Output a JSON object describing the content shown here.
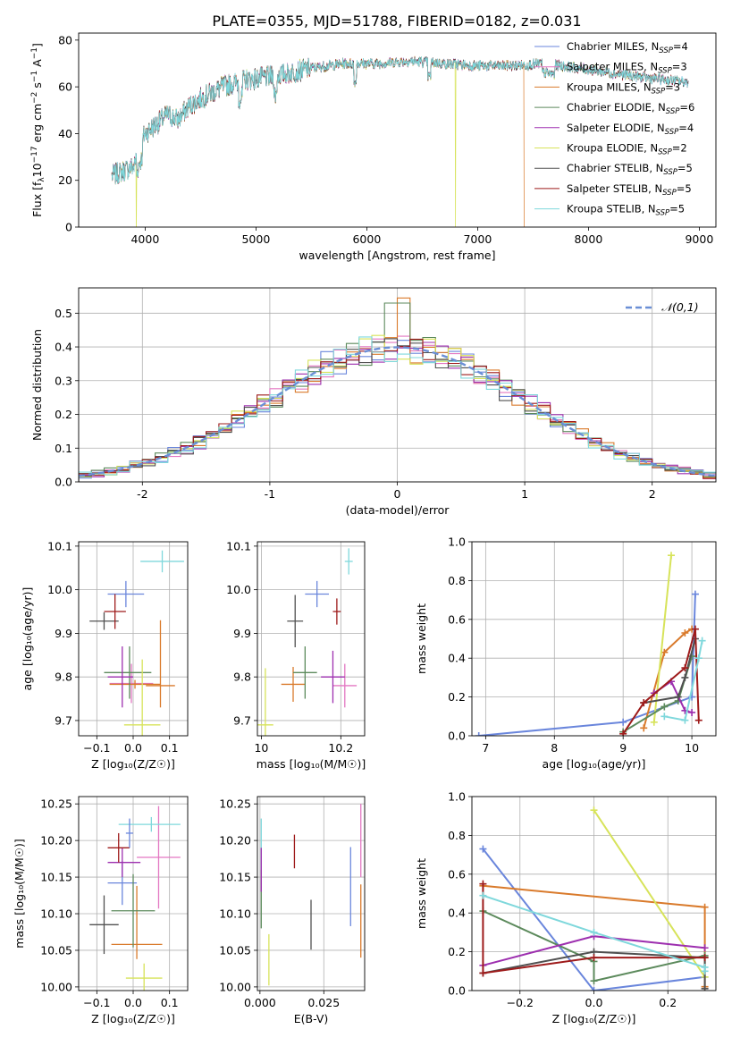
{
  "figure_title": "PLATE=0355, MJD=51788, FIBERID=0182, z=0.031",
  "chart_data": [
    {
      "id": "spectrum",
      "type": "line",
      "xlabel": "wavelength [Angstrom, rest frame]",
      "ylabel_parts": [
        "Flux [f",
        "λ",
        "10",
        "−17",
        " erg cm",
        "−2",
        " s",
        "−1",
        " A",
        "−1",
        "]"
      ],
      "xlim": [
        3400,
        9150
      ],
      "ylim": [
        0,
        83
      ],
      "xticks": [
        4000,
        5000,
        6000,
        7000,
        8000,
        9000
      ],
      "yticks": [
        0,
        20,
        40,
        60,
        80
      ],
      "continuum_approx": {
        "x": [
          3700,
          3800,
          3900,
          3950,
          4000,
          4100,
          4200,
          4300,
          4400,
          4500,
          4700,
          4900,
          5100,
          5300,
          5500,
          5800,
          6100,
          6400,
          6700,
          7000,
          7300,
          7600,
          7900,
          8200,
          8500,
          8900
        ],
        "y": [
          22,
          24,
          26,
          36,
          40,
          44,
          48,
          46,
          52,
          55,
          60,
          63,
          64,
          66,
          68,
          70,
          70,
          71,
          70,
          69,
          69,
          70,
          68,
          66,
          64,
          62
        ]
      },
      "dropouts": [
        {
          "x": 3920,
          "series": "Kroupa ELODIE"
        },
        {
          "x": 6800,
          "series": "Kroupa ELODIE"
        },
        {
          "x": 7420,
          "series": "Kroupa MILES"
        }
      ],
      "legend_position": "top-right",
      "legend": [
        {
          "name": "Chabrier MILES",
          "nssp": "4",
          "color": "#6a86dc"
        },
        {
          "name": "Salpeter MILES",
          "nssp": "3",
          "color": "#e377c2"
        },
        {
          "name": "Kroupa MILES",
          "nssp": "3",
          "color": "#d97a2b"
        },
        {
          "name": "Chabrier ELODIE",
          "nssp": "6",
          "color": "#5c8a5c"
        },
        {
          "name": "Salpeter ELODIE",
          "nssp": "4",
          "color": "#9d2faf"
        },
        {
          "name": "Kroupa ELODIE",
          "nssp": "2",
          "color": "#d7e35a"
        },
        {
          "name": "Chabrier STELIB",
          "nssp": "5",
          "color": "#505050"
        },
        {
          "name": "Salpeter STELIB",
          "nssp": "5",
          "color": "#9e1b1b"
        },
        {
          "name": "Kroupa STELIB",
          "nssp": "5",
          "color": "#7fd8dc"
        }
      ],
      "legend_prefix": "N",
      "legend_sub": "SSP"
    },
    {
      "id": "residuals",
      "type": "histogram",
      "xlabel": "(data-model)/error",
      "ylabel": "Normed distribution",
      "xlim": [
        -2.5,
        2.5
      ],
      "ylim": [
        0,
        0.575
      ],
      "xticks": [
        -2,
        -1,
        0,
        1,
        2
      ],
      "yticks": [
        0.0,
        0.1,
        0.2,
        0.3,
        0.4,
        0.5
      ],
      "bin_width": 0.1,
      "reference_curve": {
        "label": "𝒩(0,1)",
        "mean": 0,
        "sigma": 1,
        "style": "dashed",
        "color": "#6a8fd6"
      },
      "legend_position": "top-right",
      "grid": true
    },
    {
      "id": "age_vs_Z",
      "type": "errorbar",
      "xlabel": "Z [log₁₀(Z/Z☉)]",
      "ylabel": "age  [log₁₀(age/yr)]",
      "xlim": [
        -0.15,
        0.15
      ],
      "ylim": [
        9.665,
        10.11
      ],
      "xticks": [
        -0.1,
        0.0,
        0.1
      ],
      "xtick_labels": [
        "−0.1",
        "0.0",
        "0.1"
      ],
      "yticks": [
        9.7,
        9.8,
        9.9,
        10.0,
        10.1
      ],
      "points": [
        {
          "x": -0.02,
          "y": 9.99,
          "xerr": [
            0.05,
            0.05
          ],
          "yerr": [
            0.03,
            0.03
          ],
          "color": "#6a86dc"
        },
        {
          "x": -0.005,
          "y": 9.785,
          "xerr": [
            0.06,
            0.06
          ],
          "yerr": [
            0.045,
            0.045
          ],
          "color": "#e377c2"
        },
        {
          "x": 0.005,
          "y": 9.783,
          "xerr": [
            0.07,
            0.07
          ],
          "yerr": [
            0.01,
            0.01
          ],
          "color": "#d97a2b"
        },
        {
          "x": -0.01,
          "y": 9.81,
          "xerr": [
            0.07,
            0.06
          ],
          "yerr": [
            0.06,
            0.06
          ],
          "color": "#5c8a5c"
        },
        {
          "x": -0.03,
          "y": 9.8,
          "xerr": [
            0.04,
            0.03
          ],
          "yerr": [
            0.07,
            0.07
          ],
          "color": "#9d2faf"
        },
        {
          "x": 0.025,
          "y": 9.69,
          "xerr": [
            0.05,
            0.05
          ],
          "yerr": [
            0.15,
            0.15
          ],
          "color": "#d7e35a"
        },
        {
          "x": -0.08,
          "y": 9.928,
          "xerr": [
            0.04,
            0.04
          ],
          "yerr": [
            0.02,
            0.02
          ],
          "color": "#505050"
        },
        {
          "x": -0.05,
          "y": 9.95,
          "xerr": [
            0.03,
            0.03
          ],
          "yerr": [
            0.04,
            0.04
          ],
          "color": "#9e1b1b"
        },
        {
          "x": 0.08,
          "y": 10.065,
          "xerr": [
            0.06,
            0.06
          ],
          "yerr": [
            0.025,
            0.025
          ],
          "color": "#7fd8dc"
        },
        {
          "x": 0.075,
          "y": 9.78,
          "xerr": [
            0.04,
            0.04
          ],
          "yerr": [
            0.05,
            0.15
          ],
          "color": "#d97a2b"
        }
      ],
      "grid": true
    },
    {
      "id": "age_vs_mass",
      "type": "errorbar",
      "xlabel": "mass [log₁₀(M/M☉)]",
      "ylabel": "",
      "xlim": [
        9.99,
        10.26
      ],
      "ylim": [
        9.665,
        10.11
      ],
      "xticks": [
        10.0,
        10.2
      ],
      "yticks": [
        9.7,
        9.8,
        9.9,
        10.0,
        10.1
      ],
      "points": [
        {
          "x": 10.14,
          "y": 9.99,
          "xerr": [
            0.03,
            0.03
          ],
          "yerr": [
            0.03,
            0.03
          ],
          "color": "#6a86dc"
        },
        {
          "x": 10.21,
          "y": 9.78,
          "xerr": [
            0.03,
            0.03
          ],
          "yerr": [
            0.05,
            0.05
          ],
          "color": "#e377c2"
        },
        {
          "x": 10.08,
          "y": 9.783,
          "xerr": [
            0.03,
            0.03
          ],
          "yerr": [
            0.04,
            0.04
          ],
          "color": "#d97a2b"
        },
        {
          "x": 10.11,
          "y": 9.81,
          "xerr": [
            0.03,
            0.03
          ],
          "yerr": [
            0.06,
            0.06
          ],
          "color": "#5c8a5c"
        },
        {
          "x": 10.18,
          "y": 9.8,
          "xerr": [
            0.03,
            0.03
          ],
          "yerr": [
            0.06,
            0.06
          ],
          "color": "#9d2faf"
        },
        {
          "x": 10.01,
          "y": 9.69,
          "xerr": [
            0.02,
            0.02
          ],
          "yerr": [
            0.13,
            0.13
          ],
          "color": "#d7e35a"
        },
        {
          "x": 10.085,
          "y": 9.928,
          "xerr": [
            0.02,
            0.02
          ],
          "yerr": [
            0.06,
            0.06
          ],
          "color": "#505050"
        },
        {
          "x": 10.19,
          "y": 9.95,
          "xerr": [
            0.01,
            0.01
          ],
          "yerr": [
            0.03,
            0.03
          ],
          "color": "#9e1b1b"
        },
        {
          "x": 10.22,
          "y": 10.065,
          "xerr": [
            0.01,
            0.01
          ],
          "yerr": [
            0.03,
            0.03
          ],
          "color": "#7fd8dc"
        }
      ],
      "grid": true
    },
    {
      "id": "massweight_vs_age",
      "type": "line",
      "xlabel": "age  [log₁₀(age/yr)]",
      "ylabel": "mass weight",
      "xlim": [
        6.8,
        10.35
      ],
      "ylim": [
        0,
        1
      ],
      "xticks": [
        7,
        8,
        9,
        10
      ],
      "yticks": [
        0.0,
        0.2,
        0.4,
        0.6,
        0.8,
        1.0
      ],
      "series": [
        {
          "color": "#6a86dc",
          "x": [
            6.9,
            9.0,
            10.0,
            10.05
          ],
          "y": [
            0.0,
            0.07,
            0.2,
            0.73
          ]
        },
        {
          "color": "#d97a2b",
          "x": [
            9.3,
            9.6,
            9.9,
            10.0
          ],
          "y": [
            0.04,
            0.43,
            0.53,
            0.55
          ]
        },
        {
          "color": "#d7e35a",
          "x": [
            9.45,
            9.7
          ],
          "y": [
            0.07,
            0.93
          ]
        },
        {
          "color": "#5c8a5c",
          "x": [
            9.0,
            9.6,
            9.8,
            10.0
          ],
          "y": [
            0.02,
            0.15,
            0.18,
            0.41
          ]
        },
        {
          "color": "#9d2faf",
          "x": [
            9.45,
            9.7,
            9.9,
            10.0
          ],
          "y": [
            0.22,
            0.28,
            0.13,
            0.12
          ]
        },
        {
          "color": "#505050",
          "x": [
            9.3,
            9.8,
            9.9,
            10.05
          ],
          "y": [
            0.17,
            0.2,
            0.3,
            0.5
          ]
        },
        {
          "color": "#9e1b1b",
          "x": [
            9.0,
            9.3,
            9.9,
            10.05,
            10.1
          ],
          "y": [
            0.01,
            0.17,
            0.35,
            0.55,
            0.08
          ]
        },
        {
          "color": "#7fd8dc",
          "x": [
            9.6,
            9.9,
            10.1,
            10.15
          ],
          "y": [
            0.1,
            0.08,
            0.4,
            0.49
          ]
        }
      ],
      "grid": true
    },
    {
      "id": "mass_vs_Z",
      "type": "errorbar",
      "xlabel": "Z [log₁₀(Z/Z☉)]",
      "ylabel": "mass [log₁₀(M/M☉)]",
      "xlim": [
        -0.15,
        0.15
      ],
      "ylim": [
        9.995,
        10.26
      ],
      "xticks": [
        -0.1,
        0.0,
        0.1
      ],
      "xtick_labels": [
        "−0.1",
        "0.0",
        "0.1"
      ],
      "yticks": [
        10.0,
        10.05,
        10.1,
        10.15,
        10.2,
        10.25
      ],
      "points": [
        {
          "x": -0.03,
          "y": 10.142,
          "xerr": [
            0.04,
            0.04
          ],
          "yerr": [
            0.03,
            0.03
          ],
          "color": "#6a86dc"
        },
        {
          "x": 0.07,
          "y": 10.177,
          "xerr": [
            0.06,
            0.06
          ],
          "yerr": [
            0.07,
            0.07
          ],
          "color": "#e377c2"
        },
        {
          "x": 0.01,
          "y": 10.058,
          "xerr": [
            0.07,
            0.07
          ],
          "yerr": [
            0.02,
            0.08
          ],
          "color": "#d97a2b"
        },
        {
          "x": 0.0,
          "y": 10.104,
          "xerr": [
            0.06,
            0.06
          ],
          "yerr": [
            0.05,
            0.05
          ],
          "color": "#5c8a5c"
        },
        {
          "x": -0.03,
          "y": 10.17,
          "xerr": [
            0.04,
            0.05
          ],
          "yerr": [
            0.02,
            0.02
          ],
          "color": "#9d2faf"
        },
        {
          "x": 0.03,
          "y": 10.012,
          "xerr": [
            0.05,
            0.05
          ],
          "yerr": [
            0.02,
            0.02
          ],
          "color": "#d7e35a"
        },
        {
          "x": -0.08,
          "y": 10.085,
          "xerr": [
            0.04,
            0.04
          ],
          "yerr": [
            0.04,
            0.04
          ],
          "color": "#505050"
        },
        {
          "x": -0.04,
          "y": 10.19,
          "xerr": [
            0.03,
            0.03
          ],
          "yerr": [
            0.02,
            0.02
          ],
          "color": "#9e1b1b"
        },
        {
          "x": 0.05,
          "y": 10.222,
          "xerr": [
            0.09,
            0.08
          ],
          "yerr": [
            0.01,
            0.01
          ],
          "color": "#7fd8dc"
        },
        {
          "x": -0.01,
          "y": 10.21,
          "xerr": [
            0.01,
            0.01
          ],
          "yerr": [
            0.02,
            0.02
          ],
          "color": "#6a86dc"
        }
      ],
      "grid": true
    },
    {
      "id": "mass_vs_ebv",
      "type": "errorbar",
      "xlabel": "E(B-V)",
      "ylabel": "",
      "xlim": [
        -0.001,
        0.041
      ],
      "ylim": [
        9.995,
        10.26
      ],
      "xticks": [
        0.0,
        0.025
      ],
      "xtick_labels": [
        "0.000",
        "0.025"
      ],
      "yticks": [
        10.0,
        10.05,
        10.1,
        10.15,
        10.2,
        10.25
      ],
      "points": [
        {
          "x": 0.0355,
          "y": 10.137,
          "xerr": [
            0,
            0
          ],
          "yerr": [
            0.054,
            0.054
          ],
          "color": "#6a86dc"
        },
        {
          "x": 0.0395,
          "y": 10.2,
          "xerr": [
            0,
            0
          ],
          "yerr": [
            0.05,
            0.05
          ],
          "color": "#e377c2"
        },
        {
          "x": 0.0395,
          "y": 10.09,
          "xerr": [
            0,
            0
          ],
          "yerr": [
            0.05,
            0.05
          ],
          "color": "#d97a2b"
        },
        {
          "x": 0.0005,
          "y": 10.195,
          "xerr": [
            0,
            0
          ],
          "yerr": [
            0.035,
            0.035
          ],
          "color": "#7fd8dc"
        },
        {
          "x": 0.0005,
          "y": 10.12,
          "xerr": [
            0,
            0
          ],
          "yerr": [
            0.04,
            0.04
          ],
          "color": "#5c8a5c"
        },
        {
          "x": 0.0005,
          "y": 10.16,
          "xerr": [
            0,
            0
          ],
          "yerr": [
            0.03,
            0.03
          ],
          "color": "#9d2faf"
        },
        {
          "x": 0.0035,
          "y": 10.037,
          "xerr": [
            0,
            0
          ],
          "yerr": [
            0.035,
            0.035
          ],
          "color": "#d7e35a"
        },
        {
          "x": 0.02,
          "y": 10.085,
          "xerr": [
            0,
            0
          ],
          "yerr": [
            0.034,
            0.034
          ],
          "color": "#505050"
        },
        {
          "x": 0.0135,
          "y": 10.185,
          "xerr": [
            0,
            0
          ],
          "yerr": [
            0.023,
            0.023
          ],
          "color": "#9e1b1b"
        }
      ],
      "grid": true
    },
    {
      "id": "massweight_vs_Z",
      "type": "line",
      "xlabel": "Z [log₁₀(Z/Z☉)]",
      "ylabel": "mass weight",
      "xlim": [
        -0.33,
        0.33
      ],
      "ylim": [
        0,
        1
      ],
      "xticks": [
        -0.2,
        0.0,
        0.2
      ],
      "xtick_labels": [
        "−0.2",
        "0.0",
        "0.2"
      ],
      "yticks": [
        0.0,
        0.2,
        0.4,
        0.6,
        0.8,
        1.0
      ],
      "series": [
        {
          "color": "#6a86dc",
          "x": [
            -0.3,
            0.0,
            0.3
          ],
          "y": [
            0.73,
            0.0,
            0.07
          ]
        },
        {
          "color": "#d97a2b",
          "x": [
            -0.3,
            0.3,
            0.3
          ],
          "y": [
            0.54,
            0.43,
            0.02
          ]
        },
        {
          "color": "#d7e35a",
          "x": [
            0.0,
            0.3
          ],
          "y": [
            0.93,
            0.07
          ]
        },
        {
          "color": "#5c8a5c",
          "x": [
            -0.3,
            0.0,
            0.0,
            0.3
          ],
          "y": [
            0.41,
            0.15,
            0.05,
            0.18
          ]
        },
        {
          "color": "#9d2faf",
          "x": [
            -0.3,
            0.0,
            0.3
          ],
          "y": [
            0.13,
            0.28,
            0.22
          ]
        },
        {
          "color": "#505050",
          "x": [
            -0.3,
            0.0,
            0.3,
            0.3
          ],
          "y": [
            0.09,
            0.2,
            0.17,
            0.01
          ]
        },
        {
          "color": "#9e1b1b",
          "x": [
            -0.3,
            -0.3,
            0.0,
            0.3
          ],
          "y": [
            0.55,
            0.09,
            0.17,
            0.17
          ]
        },
        {
          "color": "#7fd8dc",
          "x": [
            -0.3,
            0.0,
            0.3,
            0.3
          ],
          "y": [
            0.49,
            0.3,
            0.12,
            0.1
          ]
        }
      ],
      "grid": true
    }
  ]
}
